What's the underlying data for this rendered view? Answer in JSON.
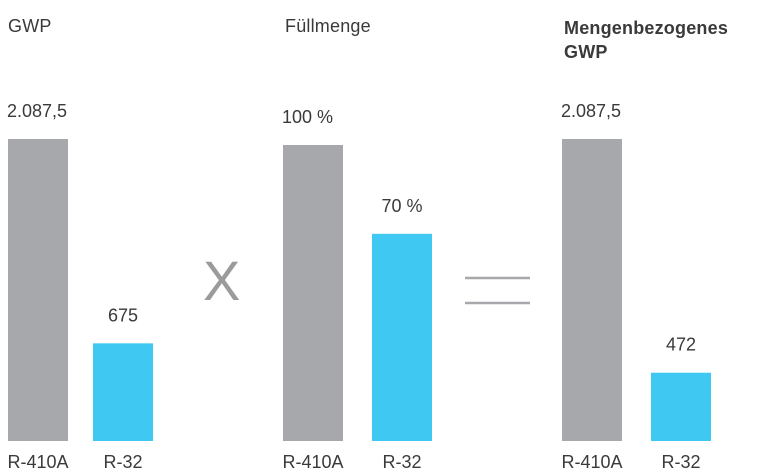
{
  "chart_data": [
    {
      "type": "bar",
      "title": "GWP",
      "categories": [
        "R-410A",
        "R-32"
      ],
      "values": [
        2087.5,
        675
      ],
      "value_labels": [
        "2.087,5",
        "675"
      ],
      "colors": [
        "#a7a8ab",
        "#3ec8f2"
      ]
    },
    {
      "type": "bar",
      "title": "Füllmenge",
      "categories": [
        "R-410A",
        "R-32"
      ],
      "values": [
        100,
        70
      ],
      "value_labels": [
        "100 %",
        "70 %"
      ],
      "colors": [
        "#a7a8ab",
        "#3ec8f2"
      ]
    },
    {
      "type": "bar",
      "title": "Mengenbezogenes GWP",
      "categories": [
        "R-410A",
        "R-32"
      ],
      "values": [
        2087.5,
        472
      ],
      "value_labels": [
        "2.087,5",
        "472"
      ],
      "colors": [
        "#a7a8ab",
        "#3ec8f2"
      ]
    }
  ],
  "operators": {
    "multiply": "X",
    "equals": "="
  }
}
